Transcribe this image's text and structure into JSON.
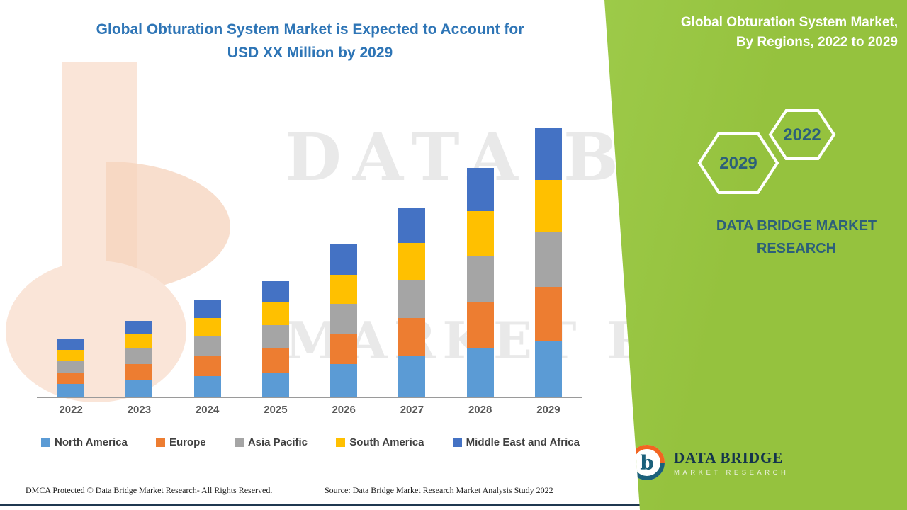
{
  "colors": {
    "panel_green": "#95C23E",
    "panel_green_light": "#9DCA49",
    "title_blue": "#2E75B6",
    "brand_teal": "#2C5F7A",
    "navy": "#1F3850",
    "label_gray": "#595959",
    "legend_text": "#404040"
  },
  "title": {
    "line1": "Global Obturation System Market is Expected to Account for",
    "line2": "USD XX Million by 2029"
  },
  "side_panel": {
    "heading_line1": "Global Obturation System Market,",
    "heading_line2": "By Regions, 2022 to 2029",
    "hexagons": [
      {
        "label": "2029"
      },
      {
        "label": "2022"
      }
    ],
    "brand_line1": "DATA BRIDGE MARKET",
    "brand_line2": "RESEARCH",
    "logo_letter": "b",
    "logo_title": "DATA BRIDGE",
    "logo_subtitle": "MARKET RESEARCH"
  },
  "watermark": {
    "line1": "DATA BRIDGE",
    "line2": "MARKET RESEARCH"
  },
  "footer": {
    "dmca": "DMCA Protected © Data Bridge Market Research- All Rights Reserved.",
    "source": "Source: Data Bridge Market Research Market Analysis Study 2022"
  },
  "chart_data": {
    "type": "bar",
    "stacked": true,
    "title": "Global Obturation System Market is Expected to Account for USD XX Million by 2029",
    "xlabel": "",
    "ylabel": "",
    "y_axis_visible": false,
    "value_scale": "relative units (chart shows no numeric axis; values displayed as XX)",
    "legend_position": "bottom",
    "categories": [
      "2022",
      "2023",
      "2024",
      "2025",
      "2026",
      "2027",
      "2028",
      "2029"
    ],
    "series": [
      {
        "name": "North America",
        "color": "#5B9BD5",
        "values": [
          5.0,
          6.5,
          8.0,
          9.5,
          12.5,
          15.5,
          18.5,
          21.5
        ]
      },
      {
        "name": "Europe",
        "color": "#ED7D31",
        "values": [
          4.5,
          6.0,
          7.5,
          9.0,
          11.5,
          14.5,
          17.5,
          20.5
        ]
      },
      {
        "name": "Asia Pacific",
        "color": "#A5A5A5",
        "values": [
          4.5,
          6.0,
          7.5,
          9.0,
          11.5,
          14.5,
          17.5,
          20.5
        ]
      },
      {
        "name": "South America",
        "color": "#FFC000",
        "values": [
          4.0,
          5.5,
          7.0,
          8.5,
          11.0,
          14.0,
          17.0,
          20.0
        ]
      },
      {
        "name": "Middle East and Africa",
        "color": "#4472C4",
        "values": [
          4.0,
          5.0,
          7.0,
          8.0,
          11.5,
          13.5,
          16.5,
          19.5
        ]
      }
    ]
  }
}
